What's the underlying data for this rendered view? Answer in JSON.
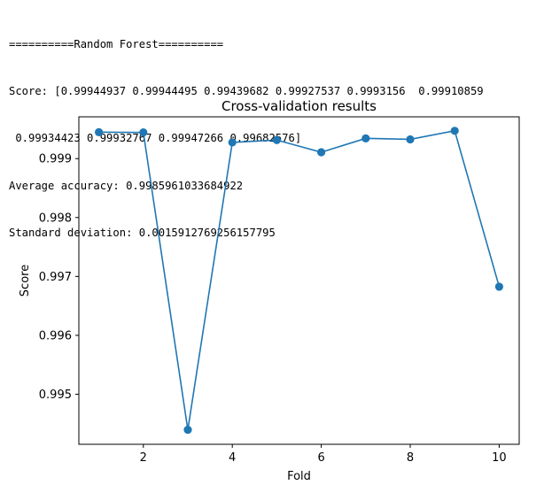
{
  "console": {
    "lines": [
      "==========Random Forest==========",
      "Score: [0.99944937 0.99944495 0.99439682 0.99927537 0.9993156  0.99910859",
      " 0.99934423 0.99932767 0.99947266 0.99682576]",
      "Average accuracy: 0.9985961033684922",
      "Standard deviation: 0.0015912769256157795"
    ]
  },
  "chart_data": {
    "type": "line",
    "title": "Cross-validation results",
    "xlabel": "Fold",
    "ylabel": "Score",
    "x": [
      1,
      2,
      3,
      4,
      5,
      6,
      7,
      8,
      9,
      10
    ],
    "series": [
      {
        "values": [
          0.99944937,
          0.99944495,
          0.99439682,
          0.99927537,
          0.9993156,
          0.99910859,
          0.99934423,
          0.99932767,
          0.99947266,
          0.99682576
        ],
        "color": "#1f77b4",
        "marker": "circle"
      }
    ],
    "xlim": [
      0.55,
      10.45
    ],
    "ylim": [
      0.99415,
      0.99971
    ],
    "xticks": [
      2,
      4,
      6,
      8,
      10
    ],
    "xtick_labels": [
      "2",
      "4",
      "6",
      "8",
      "10"
    ],
    "yticks": [
      0.995,
      0.996,
      0.997,
      0.998,
      0.999
    ],
    "ytick_labels": [
      "0.995",
      "0.996",
      "0.997",
      "0.998",
      "0.999"
    ],
    "grid": false,
    "legend": false
  }
}
